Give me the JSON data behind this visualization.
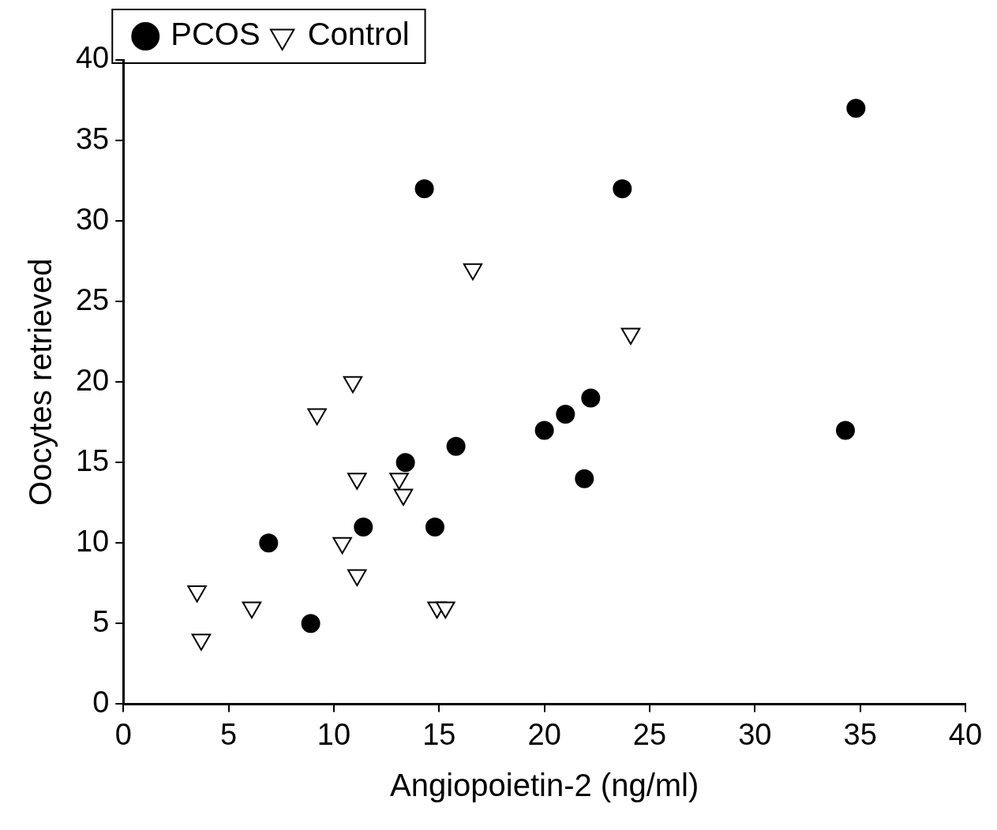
{
  "chart_data": {
    "type": "scatter",
    "xlabel": "Angiopoietin-2 (ng/ml)",
    "ylabel": "Oocytes retrieved",
    "xlim": [
      0,
      40
    ],
    "xticks": [
      0,
      5,
      10,
      15,
      20,
      25,
      30,
      35,
      40
    ],
    "ylim": [
      0,
      40
    ],
    "yticks": [
      0,
      5,
      10,
      15,
      20,
      25,
      30,
      35,
      40
    ],
    "grid": false,
    "legend": "top left",
    "series": [
      {
        "name": "PCOS",
        "color": "#000000",
        "marker": "circle",
        "x": [
          6.9,
          8.9,
          11.4,
          13.4,
          14.3,
          14.8,
          15.8,
          20.0,
          21.0,
          22.2,
          21.9,
          23.7,
          34.8,
          34.3
        ],
        "values": [
          10,
          5,
          11,
          15,
          32,
          11,
          16,
          17,
          18,
          19,
          14,
          32,
          37,
          17
        ]
      },
      {
        "name": "Control",
        "color": "#000000",
        "marker": "triangle",
        "x": [
          3.5,
          3.7,
          6.1,
          9.2,
          10.9,
          10.4,
          11.1,
          11.1,
          13.1,
          13.3,
          14.9,
          15.3,
          16.6,
          24.1
        ],
        "values": [
          7,
          4,
          6,
          18,
          20,
          10,
          14,
          8,
          14,
          13,
          6,
          6,
          27,
          23
        ]
      }
    ]
  }
}
